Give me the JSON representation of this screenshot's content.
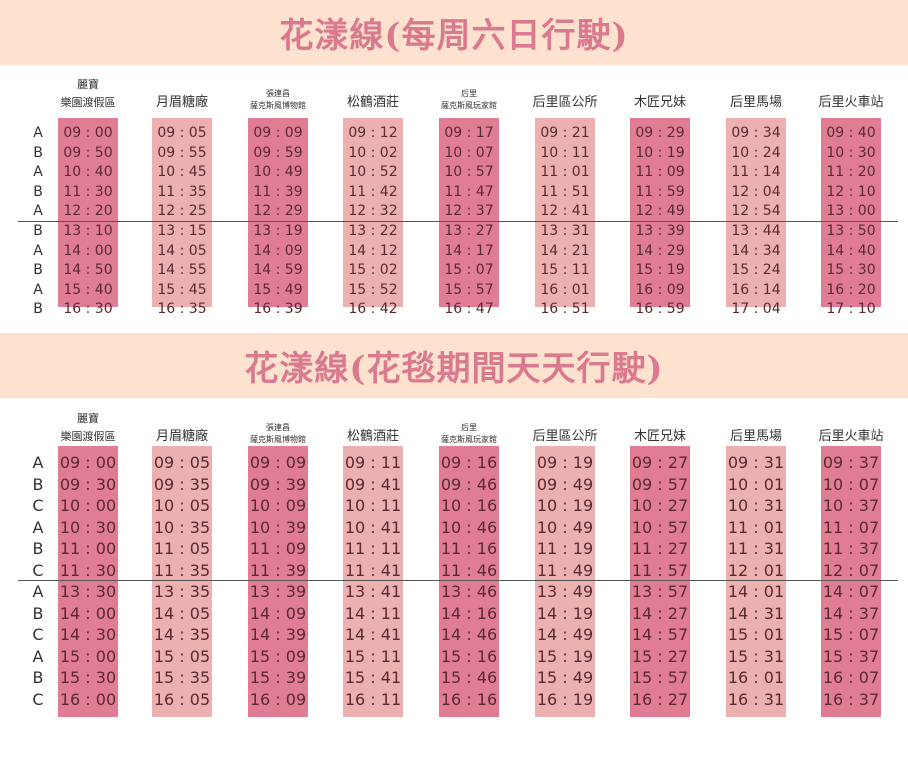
{
  "colors": {
    "banner_bg": "#fde3cf",
    "title": "#d97a8f",
    "column_dark": "#e07d95",
    "column_light": "#edb0b1"
  },
  "schedules": [
    {
      "title": "花漾線(每周六日行駛)",
      "stops": [
        {
          "line1": "麗寶",
          "line2": "樂園渡假區"
        },
        {
          "line1": "",
          "line2": "月眉糖廠"
        },
        {
          "line1": "張連昌",
          "line2": "薩克斯風博物館"
        },
        {
          "line1": "",
          "line2": "松鶴酒莊"
        },
        {
          "line1": "后里",
          "line2": "薩克斯風玩家館"
        },
        {
          "line1": "",
          "line2": "后里區公所"
        },
        {
          "line1": "",
          "line2": "木匠兄妹"
        },
        {
          "line1": "",
          "line2": "后里馬場"
        },
        {
          "line1": "",
          "line2": "后里火車站"
        }
      ],
      "rows": [
        {
          "label": "A",
          "times": [
            "09 : 00",
            "09 : 05",
            "09 : 09",
            "09 : 12",
            "09 : 17",
            "09 : 21",
            "09 : 29",
            "09 : 34",
            "09 : 40"
          ]
        },
        {
          "label": "B",
          "times": [
            "09 : 50",
            "09 : 55",
            "09 : 59",
            "10 : 02",
            "10 : 07",
            "10 : 11",
            "10 : 19",
            "10 : 24",
            "10 : 30"
          ]
        },
        {
          "label": "A",
          "times": [
            "10 : 40",
            "10 : 45",
            "10 : 49",
            "10 : 52",
            "10 : 57",
            "11 : 01",
            "11 : 09",
            "11 : 14",
            "11 : 20"
          ]
        },
        {
          "label": "B",
          "times": [
            "11 : 30",
            "11 : 35",
            "11 : 39",
            "11 : 42",
            "11 : 47",
            "11 : 51",
            "11 : 59",
            "12 : 04",
            "12 : 10"
          ]
        },
        {
          "label": "A",
          "times": [
            "12 : 20",
            "12 : 25",
            "12 : 29",
            "12 : 32",
            "12 : 37",
            "12 : 41",
            "12 : 49",
            "12 : 54",
            "13 : 00"
          ]
        },
        {
          "label": "B",
          "times": [
            "13 : 10",
            "13 : 15",
            "13 : 19",
            "13 : 22",
            "13 : 27",
            "13 : 31",
            "13 : 39",
            "13 : 44",
            "13 : 50"
          ]
        },
        {
          "label": "A",
          "times": [
            "14 : 00",
            "14 : 05",
            "14 : 09",
            "14 : 12",
            "14 : 17",
            "14 : 21",
            "14 : 29",
            "14 : 34",
            "14 : 40"
          ]
        },
        {
          "label": "B",
          "times": [
            "14 : 50",
            "14 : 55",
            "14 : 59",
            "15 : 02",
            "15 : 07",
            "15 : 11",
            "15 : 19",
            "15 : 24",
            "15 : 30"
          ]
        },
        {
          "label": "A",
          "times": [
            "15 : 40",
            "15 : 45",
            "15 : 49",
            "15 : 52",
            "15 : 57",
            "16 : 01",
            "16 : 09",
            "16 : 14",
            "16 : 20"
          ]
        },
        {
          "label": "B",
          "times": [
            "16 : 30",
            "16 : 35",
            "16 : 39",
            "16 : 42",
            "16 : 47",
            "16 : 51",
            "16 : 59",
            "17 : 04",
            "17 : 10"
          ]
        }
      ]
    },
    {
      "title": "花漾線(花毯期間天天行駛)",
      "stops": [
        {
          "line1": "麗寶",
          "line2": "樂園渡假區"
        },
        {
          "line1": "",
          "line2": "月眉糖廠"
        },
        {
          "line1": "張連昌",
          "line2": "薩克斯風博物館"
        },
        {
          "line1": "",
          "line2": "松鶴酒莊"
        },
        {
          "line1": "后里",
          "line2": "薩克斯風玩家館"
        },
        {
          "line1": "",
          "line2": "后里區公所"
        },
        {
          "line1": "",
          "line2": "木匠兄妹"
        },
        {
          "line1": "",
          "line2": "后里馬場"
        },
        {
          "line1": "",
          "line2": "后里火車站"
        }
      ],
      "rows": [
        {
          "label": "A",
          "times": [
            "09 : 00",
            "09 : 05",
            "09 : 09",
            "09 : 11",
            "09 : 16",
            "09 : 19",
            "09 : 27",
            "09 : 31",
            "09 : 37"
          ]
        },
        {
          "label": "B",
          "times": [
            "09 : 30",
            "09 : 35",
            "09 : 39",
            "09 : 41",
            "09 : 46",
            "09 : 49",
            "09 : 57",
            "10 : 01",
            "10 : 07"
          ]
        },
        {
          "label": "C",
          "times": [
            "10 : 00",
            "10 : 05",
            "10 : 09",
            "10 : 11",
            "10 : 16",
            "10 : 19",
            "10 : 27",
            "10 : 31",
            "10 : 37"
          ]
        },
        {
          "label": "A",
          "times": [
            "10 : 30",
            "10 : 35",
            "10 : 39",
            "10 : 41",
            "10 : 46",
            "10 : 49",
            "10 : 57",
            "11 : 01",
            "11 : 07"
          ]
        },
        {
          "label": "B",
          "times": [
            "11 : 00",
            "11 : 05",
            "11 : 09",
            "11 : 11",
            "11 : 16",
            "11 : 19",
            "11 : 27",
            "11 : 31",
            "11 : 37"
          ]
        },
        {
          "label": "C",
          "times": [
            "11 : 30",
            "11 : 35",
            "11 : 39",
            "11 : 41",
            "11 : 46",
            "11 : 49",
            "11 : 57",
            "12 : 01",
            "12 : 07"
          ]
        },
        {
          "label": "A",
          "times": [
            "13 : 30",
            "13 : 35",
            "13 : 39",
            "13 : 41",
            "13 : 46",
            "13 : 49",
            "13 : 57",
            "14 : 01",
            "14 : 07"
          ]
        },
        {
          "label": "B",
          "times": [
            "14 : 00",
            "14 : 05",
            "14 : 09",
            "14 : 11",
            "14 : 16",
            "14 : 19",
            "14 : 27",
            "14 : 31",
            "14 : 37"
          ]
        },
        {
          "label": "C",
          "times": [
            "14 : 30",
            "14 : 35",
            "14 : 39",
            "14 : 41",
            "14 : 46",
            "14 : 49",
            "14 : 57",
            "15 : 01",
            "15 : 07"
          ]
        },
        {
          "label": "A",
          "times": [
            "15 : 00",
            "15 : 05",
            "15 : 09",
            "15 : 11",
            "15 : 16",
            "15 : 19",
            "15 : 27",
            "15 : 31",
            "15 : 37"
          ]
        },
        {
          "label": "B",
          "times": [
            "15 : 30",
            "15 : 35",
            "15 : 39",
            "15 : 41",
            "15 : 46",
            "15 : 49",
            "15 : 57",
            "16 : 01",
            "16 : 07"
          ]
        },
        {
          "label": "C",
          "times": [
            "16 : 00",
            "16 : 05",
            "16 : 09",
            "16 : 11",
            "16 : 16",
            "16 : 19",
            "16 : 27",
            "16 : 31",
            "16 : 37"
          ]
        }
      ]
    }
  ]
}
